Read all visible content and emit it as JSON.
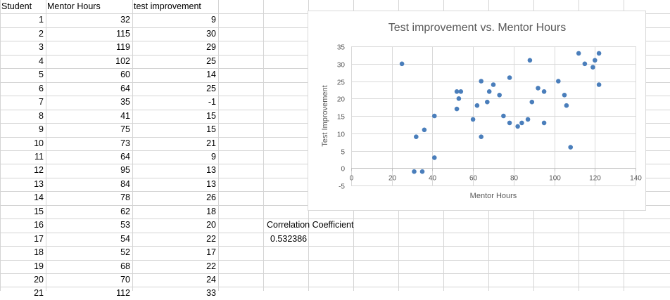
{
  "sheet": {
    "headers": [
      "Student",
      "Mentor Hours",
      "test improvement"
    ],
    "rows": [
      {
        "student": "1",
        "mentor_hours": "32",
        "test_improvement": "9"
      },
      {
        "student": "2",
        "mentor_hours": "115",
        "test_improvement": "30"
      },
      {
        "student": "3",
        "mentor_hours": "119",
        "test_improvement": "29"
      },
      {
        "student": "4",
        "mentor_hours": "102",
        "test_improvement": "25"
      },
      {
        "student": "5",
        "mentor_hours": "60",
        "test_improvement": "14"
      },
      {
        "student": "6",
        "mentor_hours": "64",
        "test_improvement": "25"
      },
      {
        "student": "7",
        "mentor_hours": "35",
        "test_improvement": "-1"
      },
      {
        "student": "8",
        "mentor_hours": "41",
        "test_improvement": "15"
      },
      {
        "student": "9",
        "mentor_hours": "75",
        "test_improvement": "15"
      },
      {
        "student": "10",
        "mentor_hours": "73",
        "test_improvement": "21"
      },
      {
        "student": "11",
        "mentor_hours": "64",
        "test_improvement": "9"
      },
      {
        "student": "12",
        "mentor_hours": "95",
        "test_improvement": "13"
      },
      {
        "student": "13",
        "mentor_hours": "84",
        "test_improvement": "13"
      },
      {
        "student": "14",
        "mentor_hours": "78",
        "test_improvement": "26"
      },
      {
        "student": "15",
        "mentor_hours": "62",
        "test_improvement": "18"
      },
      {
        "student": "16",
        "mentor_hours": "53",
        "test_improvement": "20"
      },
      {
        "student": "17",
        "mentor_hours": "54",
        "test_improvement": "22"
      },
      {
        "student": "18",
        "mentor_hours": "52",
        "test_improvement": "17"
      },
      {
        "student": "19",
        "mentor_hours": "68",
        "test_improvement": "22"
      },
      {
        "student": "20",
        "mentor_hours": "70",
        "test_improvement": "24"
      },
      {
        "student": "21",
        "mentor_hours": "112",
        "test_improvement": "33"
      }
    ],
    "correlation_label": "Correlation Coefficient",
    "correlation_value": "0.532386"
  },
  "chart_data": {
    "type": "scatter",
    "title": "Test improvement vs. Mentor Hours",
    "xlabel": "Mentor Hours",
    "ylabel": "Test Improvement",
    "xlim": [
      0,
      140
    ],
    "ylim": [
      -5,
      35
    ],
    "xticks": [
      0,
      20,
      40,
      60,
      80,
      100,
      120,
      140
    ],
    "yticks": [
      -5,
      0,
      5,
      10,
      15,
      20,
      25,
      30,
      35
    ],
    "grid": true,
    "legend": "none",
    "marker_color": "#4a7ebb",
    "points": [
      [
        25,
        30
      ],
      [
        31,
        -1
      ],
      [
        32,
        9
      ],
      [
        35,
        -1
      ],
      [
        36,
        11
      ],
      [
        41,
        3
      ],
      [
        41,
        15
      ],
      [
        52,
        22
      ],
      [
        52,
        17
      ],
      [
        53,
        20
      ],
      [
        54,
        22
      ],
      [
        60,
        14
      ],
      [
        62,
        18
      ],
      [
        64,
        25
      ],
      [
        64,
        9
      ],
      [
        67,
        19
      ],
      [
        68,
        22
      ],
      [
        70,
        24
      ],
      [
        73,
        21
      ],
      [
        75,
        15
      ],
      [
        78,
        26
      ],
      [
        78,
        13
      ],
      [
        82,
        12
      ],
      [
        84,
        13
      ],
      [
        87,
        14
      ],
      [
        88,
        31
      ],
      [
        89,
        19
      ],
      [
        92,
        23
      ],
      [
        95,
        22
      ],
      [
        95,
        13
      ],
      [
        102,
        25
      ],
      [
        105,
        21
      ],
      [
        106,
        18
      ],
      [
        108,
        6
      ],
      [
        112,
        33
      ],
      [
        115,
        30
      ],
      [
        119,
        29
      ],
      [
        120,
        31
      ],
      [
        122,
        33
      ],
      [
        122,
        24
      ]
    ]
  }
}
